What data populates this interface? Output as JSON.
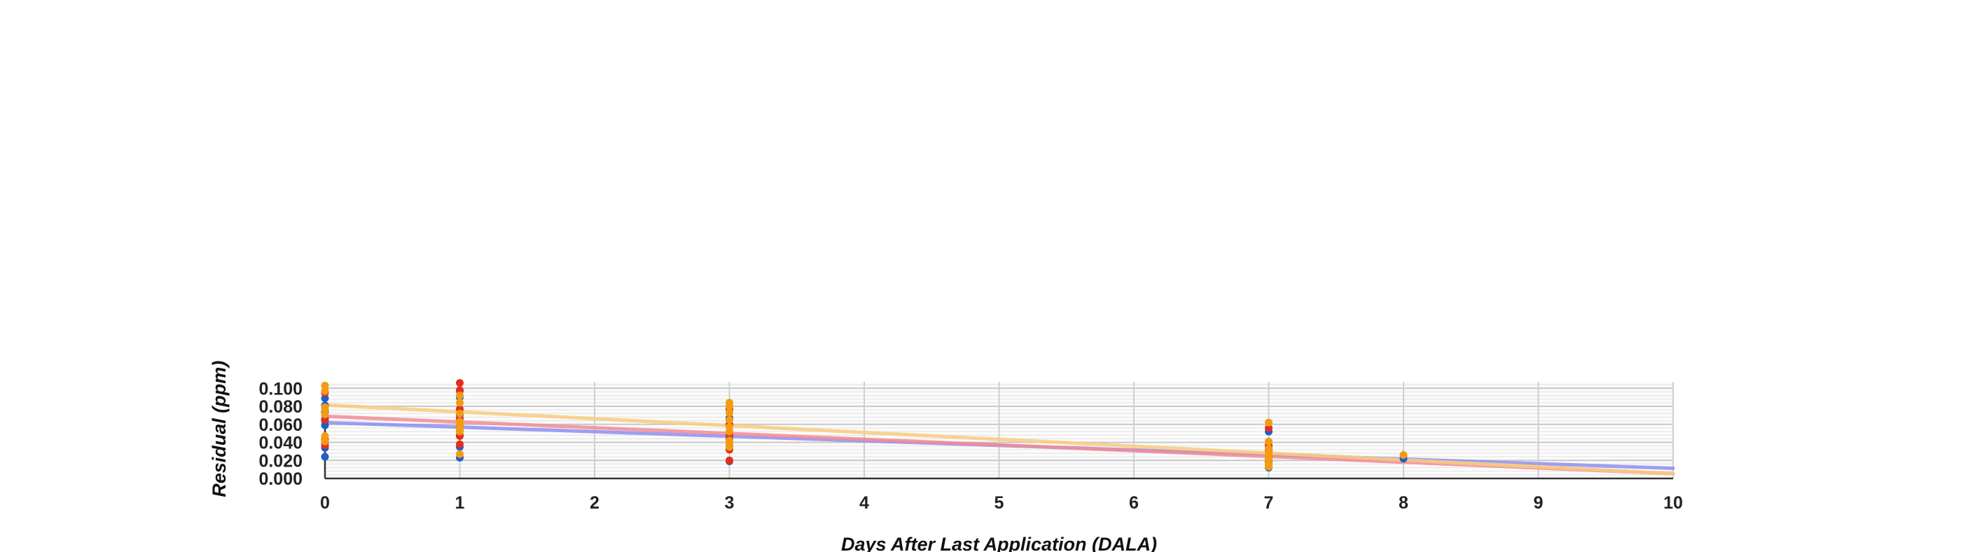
{
  "chart_data": {
    "type": "scatter",
    "title": "",
    "xlabel": "Days After Last Application (DALA)",
    "ylabel": "Residual (ppm)",
    "xlim": [
      0,
      10
    ],
    "ylim": [
      0,
      0.107
    ],
    "x_ticks": [
      "0",
      "1",
      "2",
      "3",
      "4",
      "5",
      "6",
      "7",
      "8",
      "9",
      "10"
    ],
    "y_ticks": [
      "0.000",
      "0.020",
      "0.040",
      "0.060",
      "0.080",
      "0.100"
    ],
    "grid": true,
    "legend": "none",
    "series": [
      {
        "color": "#1f5fc8",
        "points": [
          [
            0,
            0.089
          ],
          [
            0,
            0.081
          ],
          [
            0,
            0.074
          ],
          [
            0,
            0.066
          ],
          [
            0,
            0.064
          ],
          [
            0,
            0.059
          ],
          [
            0,
            0.04
          ],
          [
            0,
            0.034
          ],
          [
            0,
            0.024
          ],
          [
            1,
            0.097
          ],
          [
            1,
            0.09
          ],
          [
            1,
            0.07
          ],
          [
            1,
            0.053
          ],
          [
            1,
            0.035
          ],
          [
            1,
            0.023
          ],
          [
            3,
            0.067
          ],
          [
            3,
            0.044
          ],
          [
            3,
            0.019
          ],
          [
            7,
            0.052
          ],
          [
            7,
            0.034
          ],
          [
            7,
            0.024
          ],
          [
            7,
            0.019
          ],
          [
            7,
            0.012
          ],
          [
            8,
            0.022
          ]
        ]
      },
      {
        "color": "#e52d1f",
        "points": [
          [
            0,
            0.095
          ],
          [
            0,
            0.065
          ],
          [
            0,
            0.043
          ],
          [
            0,
            0.037
          ],
          [
            1,
            0.106
          ],
          [
            1,
            0.098
          ],
          [
            1,
            0.077
          ],
          [
            1,
            0.066
          ],
          [
            1,
            0.058
          ],
          [
            1,
            0.048
          ],
          [
            1,
            0.047
          ],
          [
            1,
            0.038
          ],
          [
            3,
            0.077
          ],
          [
            3,
            0.06
          ],
          [
            3,
            0.048
          ],
          [
            3,
            0.032
          ],
          [
            3,
            0.02
          ],
          [
            7,
            0.056
          ],
          [
            7,
            0.037
          ],
          [
            7,
            0.031
          ],
          [
            7,
            0.022
          ],
          [
            7,
            0.02
          ],
          [
            7,
            0.016
          ]
        ]
      },
      {
        "color": "#f39c12",
        "points": [
          [
            0,
            0.103
          ],
          [
            0,
            0.097
          ],
          [
            0,
            0.079
          ],
          [
            0,
            0.077
          ],
          [
            0,
            0.071
          ],
          [
            0,
            0.047
          ],
          [
            0,
            0.041
          ],
          [
            1,
            0.092
          ],
          [
            1,
            0.084
          ],
          [
            1,
            0.072
          ],
          [
            1,
            0.063
          ],
          [
            1,
            0.06
          ],
          [
            1,
            0.056
          ],
          [
            1,
            0.052
          ],
          [
            1,
            0.027
          ],
          [
            3,
            0.084
          ],
          [
            3,
            0.08
          ],
          [
            3,
            0.073
          ],
          [
            3,
            0.065
          ],
          [
            3,
            0.057
          ],
          [
            3,
            0.052
          ],
          [
            3,
            0.042
          ],
          [
            3,
            0.039
          ],
          [
            3,
            0.037
          ],
          [
            3,
            0.035
          ],
          [
            7,
            0.062
          ],
          [
            7,
            0.041
          ],
          [
            7,
            0.033
          ],
          [
            7,
            0.028
          ],
          [
            7,
            0.026
          ],
          [
            7,
            0.023
          ],
          [
            7,
            0.021
          ],
          [
            7,
            0.016
          ],
          [
            7,
            0.014
          ],
          [
            7,
            0.013
          ],
          [
            8,
            0.026
          ]
        ]
      }
    ],
    "trendlines": [
      {
        "color": "#8f8ff2",
        "from": [
          0,
          0.062
        ],
        "to": [
          10,
          0.0113
        ]
      },
      {
        "color": "#f48c94",
        "from": [
          0,
          0.069
        ],
        "to": [
          10,
          0.0053
        ]
      },
      {
        "color": "#f8cd80",
        "from": [
          0,
          0.0815
        ],
        "to": [
          10,
          0.0053
        ]
      }
    ]
  }
}
